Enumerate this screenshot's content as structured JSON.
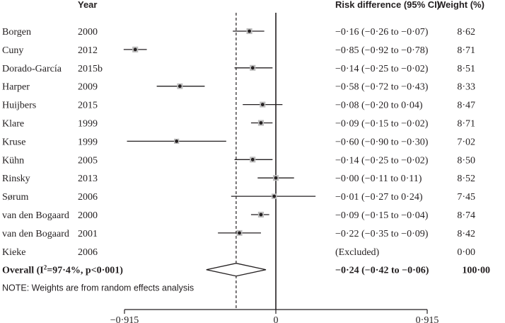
{
  "chart_data": {
    "type": "forest",
    "headers": {
      "study": "",
      "year": "Year",
      "effect": "Risk difference (95% CI)",
      "weight": "Weight (%)"
    },
    "studies": [
      {
        "name": "Borgen",
        "year": "2000",
        "rd": -0.16,
        "lo": -0.26,
        "hi": -0.07,
        "ci_text": "−0·16 (−0·26 to −0·07)",
        "weight": 8.62,
        "weight_text": "8·62"
      },
      {
        "name": "Cuny",
        "year": "2012",
        "rd": -0.85,
        "lo": -0.92,
        "hi": -0.78,
        "ci_text": "−0·85 (−0·92 to −0·78)",
        "weight": 8.71,
        "weight_text": "8·71"
      },
      {
        "name": "Dorado-García",
        "year": "2015b",
        "rd": -0.14,
        "lo": -0.25,
        "hi": -0.02,
        "ci_text": "−0·14 (−0·25 to −0·02)",
        "weight": 8.51,
        "weight_text": "8·51"
      },
      {
        "name": "Harper",
        "year": "2009",
        "rd": -0.58,
        "lo": -0.72,
        "hi": -0.43,
        "ci_text": "−0·58 (−0·72 to −0·43)",
        "weight": 8.33,
        "weight_text": "8·33"
      },
      {
        "name": "Huijbers",
        "year": "2015",
        "rd": -0.08,
        "lo": -0.2,
        "hi": 0.04,
        "ci_text": "−0·08 (−0·20 to 0·04)",
        "weight": 8.47,
        "weight_text": "8·47"
      },
      {
        "name": "Klare",
        "year": "1999",
        "rd": -0.09,
        "lo": -0.15,
        "hi": -0.02,
        "ci_text": "−0·09 (−0·15 to −0·02)",
        "weight": 8.71,
        "weight_text": "8·71"
      },
      {
        "name": "Kruse",
        "year": "1999",
        "rd": -0.6,
        "lo": -0.9,
        "hi": -0.3,
        "ci_text": "−0·60 (−0·90 to −0·30)",
        "weight": 7.02,
        "weight_text": "7·02"
      },
      {
        "name": "Kühn",
        "year": "2005",
        "rd": -0.14,
        "lo": -0.25,
        "hi": -0.02,
        "ci_text": "−0·14 (−0·25 to −0·02)",
        "weight": 8.5,
        "weight_text": "8·50"
      },
      {
        "name": "Rinsky",
        "year": "2013",
        "rd": 0.0,
        "lo": -0.11,
        "hi": 0.11,
        "ci_text": "−0·00 (−0·11 to 0·11)",
        "weight": 8.52,
        "weight_text": "8·52"
      },
      {
        "name": "Sørum",
        "year": "2006",
        "rd": -0.01,
        "lo": -0.27,
        "hi": 0.24,
        "ci_text": "−0·01 (−0·27 to 0·24)",
        "weight": 7.45,
        "weight_text": "7·45"
      },
      {
        "name": "van den Bogaard",
        "year": "2000",
        "rd": -0.09,
        "lo": -0.15,
        "hi": -0.04,
        "ci_text": "−0·09 (−0·15 to −0·04)",
        "weight": 8.74,
        "weight_text": "8·74"
      },
      {
        "name": "van den Bogaard",
        "year": "2001",
        "rd": -0.22,
        "lo": -0.35,
        "hi": -0.09,
        "ci_text": "−0·22 (−0·35 to −0·09)",
        "weight": 8.42,
        "weight_text": "8·42"
      },
      {
        "name": "Kieke",
        "year": "2006",
        "rd": null,
        "lo": null,
        "hi": null,
        "ci_text": "(Excluded)",
        "weight": 0.0,
        "weight_text": "0·00"
      }
    ],
    "overall": {
      "label_prefix": "Overall  (I",
      "label_sup": "2",
      "label_suffix": "=97·4%, p<0·001)",
      "rd": -0.24,
      "lo": -0.42,
      "hi": -0.06,
      "ci_text": "−0·24 (−0·42 to −0·06)",
      "weight_text": "100·00"
    },
    "note": "NOTE: Weights are from random effects analysis",
    "x_axis": {
      "min": -0.915,
      "max": 0.915,
      "ticks": [
        {
          "value": -0.915,
          "label": "−0·915"
        },
        {
          "value": 0,
          "label": "0"
        },
        {
          "value": 0.915,
          "label": "0·915"
        }
      ]
    },
    "null_line": 0,
    "overall_reference_line": -0.24
  }
}
